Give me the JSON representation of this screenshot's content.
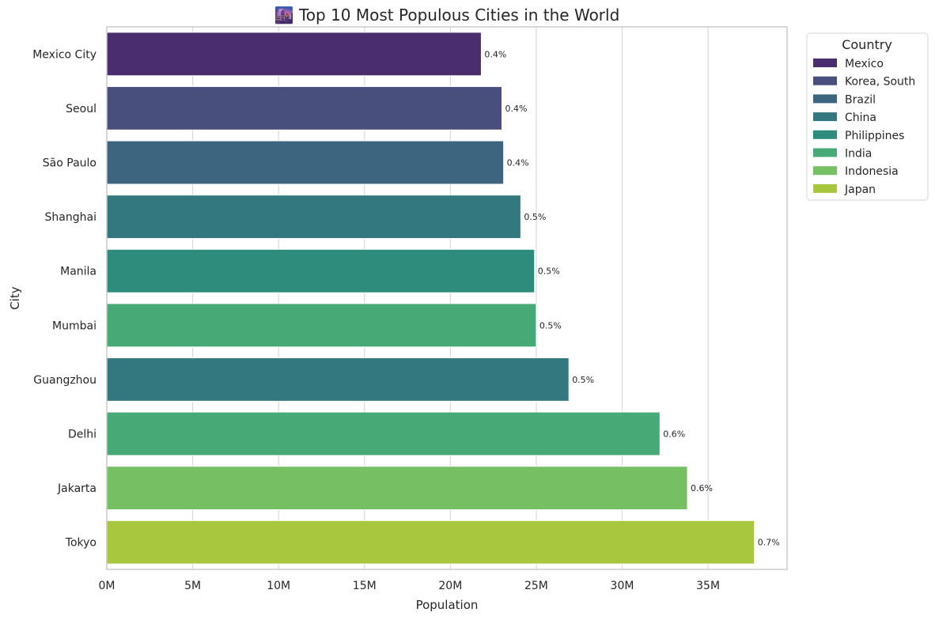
{
  "chart_data": {
    "type": "bar",
    "orientation": "horizontal",
    "title": "🌆 Top 10 Most Populous Cities in the World",
    "xlabel": "Population",
    "ylabel": "City",
    "xlim": [
      0,
      39600000
    ],
    "x_ticks": [
      0,
      5000000,
      10000000,
      15000000,
      20000000,
      25000000,
      30000000,
      35000000
    ],
    "x_tick_labels": [
      "0M",
      "5M",
      "10M",
      "15M",
      "20M",
      "25M",
      "30M",
      "35M"
    ],
    "grid": "vertical",
    "legend_title": "Country",
    "legend_position": "outside upper right",
    "legend": [
      {
        "name": "Mexico",
        "color": "#4a2d6f"
      },
      {
        "name": "Korea, South",
        "color": "#484f7d"
      },
      {
        "name": "Brazil",
        "color": "#3e6580"
      },
      {
        "name": "China",
        "color": "#33787e"
      },
      {
        "name": "Philippines",
        "color": "#2d8c7c"
      },
      {
        "name": "India",
        "color": "#46a976"
      },
      {
        "name": "Indonesia",
        "color": "#76bf63"
      },
      {
        "name": "Japan",
        "color": "#a9c63f"
      }
    ],
    "bars": [
      {
        "city": "Mexico City",
        "country": "Mexico",
        "value": 21800000,
        "label": "0.4%"
      },
      {
        "city": "Seoul",
        "country": "Korea, South",
        "value": 23000000,
        "label": "0.4%"
      },
      {
        "city": "São Paulo",
        "country": "Brazil",
        "value": 23100000,
        "label": "0.4%"
      },
      {
        "city": "Shanghai",
        "country": "China",
        "value": 24100000,
        "label": "0.5%"
      },
      {
        "city": "Manila",
        "country": "Philippines",
        "value": 24900000,
        "label": "0.5%"
      },
      {
        "city": "Mumbai",
        "country": "India",
        "value": 25000000,
        "label": "0.5%"
      },
      {
        "city": "Guangzhou",
        "country": "China",
        "value": 26900000,
        "label": "0.5%"
      },
      {
        "city": "Delhi",
        "country": "India",
        "value": 32200000,
        "label": "0.6%"
      },
      {
        "city": "Jakarta",
        "country": "Indonesia",
        "value": 33800000,
        "label": "0.6%"
      },
      {
        "city": "Tokyo",
        "country": "Japan",
        "value": 37700000,
        "label": "0.7%"
      }
    ]
  }
}
